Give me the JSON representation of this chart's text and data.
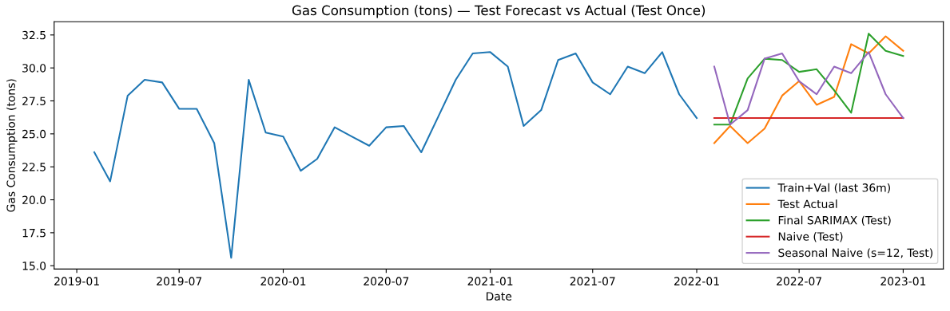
{
  "chart_data": {
    "type": "line",
    "title": "Gas Consumption (tons) — Test Forecast vs Actual (Test Once)",
    "xlabel": "Date",
    "ylabel": "Gas Consumption (tons)",
    "series": [
      {
        "name": "Train+Val (last 36m)",
        "color": "#1f77b4",
        "x": [
          "2019-02",
          "2019-03",
          "2019-04",
          "2019-05",
          "2019-06",
          "2019-07",
          "2019-08",
          "2019-09",
          "2019-10",
          "2019-11",
          "2019-12",
          "2020-01",
          "2020-02",
          "2020-03",
          "2020-04",
          "2020-05",
          "2020-06",
          "2020-07",
          "2020-08",
          "2020-09",
          "2020-10",
          "2020-11",
          "2020-12",
          "2021-01",
          "2021-02",
          "2021-03",
          "2021-04",
          "2021-05",
          "2021-06",
          "2021-07",
          "2021-08",
          "2021-09",
          "2021-10",
          "2021-11",
          "2021-12",
          "2022-01"
        ],
        "values": [
          23.6,
          21.4,
          27.9,
          29.1,
          28.9,
          26.9,
          26.9,
          24.3,
          15.6,
          29.1,
          25.1,
          24.8,
          22.2,
          23.1,
          25.5,
          24.8,
          24.1,
          25.5,
          25.6,
          23.6,
          26.3,
          29.1,
          31.1,
          31.2,
          30.1,
          25.6,
          26.8,
          30.6,
          31.1,
          28.9,
          28.0,
          30.1,
          29.6,
          31.2,
          28.0,
          26.2
        ]
      },
      {
        "name": "Test Actual",
        "color": "#ff7f0e",
        "x": [
          "2022-02",
          "2022-03",
          "2022-04",
          "2022-05",
          "2022-06",
          "2022-07",
          "2022-08",
          "2022-09",
          "2022-10",
          "2022-11",
          "2022-12",
          "2023-01"
        ],
        "values": [
          24.3,
          25.6,
          24.3,
          25.4,
          27.9,
          29.0,
          27.2,
          27.8,
          31.8,
          31.1,
          32.4,
          31.3
        ]
      },
      {
        "name": "Final SARIMAX (Test)",
        "color": "#2ca02c",
        "x": [
          "2022-02",
          "2022-03",
          "2022-04",
          "2022-05",
          "2022-06",
          "2022-07",
          "2022-08",
          "2022-09",
          "2022-10",
          "2022-11",
          "2022-12",
          "2023-01"
        ],
        "values": [
          25.7,
          25.7,
          29.2,
          30.7,
          30.6,
          29.7,
          29.9,
          28.3,
          26.6,
          32.6,
          31.3,
          30.9
        ]
      },
      {
        "name": "Naive (Test)",
        "color": "#d62728",
        "x": [
          "2022-02",
          "2022-03",
          "2022-04",
          "2022-05",
          "2022-06",
          "2022-07",
          "2022-08",
          "2022-09",
          "2022-10",
          "2022-11",
          "2022-12",
          "2023-01"
        ],
        "values": [
          26.2,
          26.2,
          26.2,
          26.2,
          26.2,
          26.2,
          26.2,
          26.2,
          26.2,
          26.2,
          26.2,
          26.2
        ]
      },
      {
        "name": "Seasonal Naive (s=12, Test)",
        "color": "#9467bd",
        "x": [
          "2022-02",
          "2022-03",
          "2022-04",
          "2022-05",
          "2022-06",
          "2022-07",
          "2022-08",
          "2022-09",
          "2022-10",
          "2022-11",
          "2022-12",
          "2023-01"
        ],
        "values": [
          30.1,
          25.7,
          26.8,
          30.7,
          31.1,
          29.0,
          28.0,
          30.1,
          29.6,
          31.2,
          28.0,
          26.2
        ]
      }
    ],
    "xlim": [
      "2018-11-22",
      "2023-03-13"
    ],
    "xticks": [
      "2019-01",
      "2019-07",
      "2020-01",
      "2020-07",
      "2021-01",
      "2021-07",
      "2022-01",
      "2022-07",
      "2023-01"
    ],
    "ylim": [
      14.75,
      33.5
    ],
    "yticks": [
      {
        "value": 15,
        "label": "15.0"
      },
      {
        "value": 17.5,
        "label": "17.5"
      },
      {
        "value": 20,
        "label": "20.0"
      },
      {
        "value": 22.5,
        "label": "22.5"
      },
      {
        "value": 25,
        "label": "25.0"
      },
      {
        "value": 27.5,
        "label": "27.5"
      },
      {
        "value": 30,
        "label": "30.0"
      },
      {
        "value": 32.5,
        "label": "32.5"
      }
    ],
    "grid": false,
    "legend": "bottom right",
    "marker": "none",
    "line_style": "solid"
  }
}
